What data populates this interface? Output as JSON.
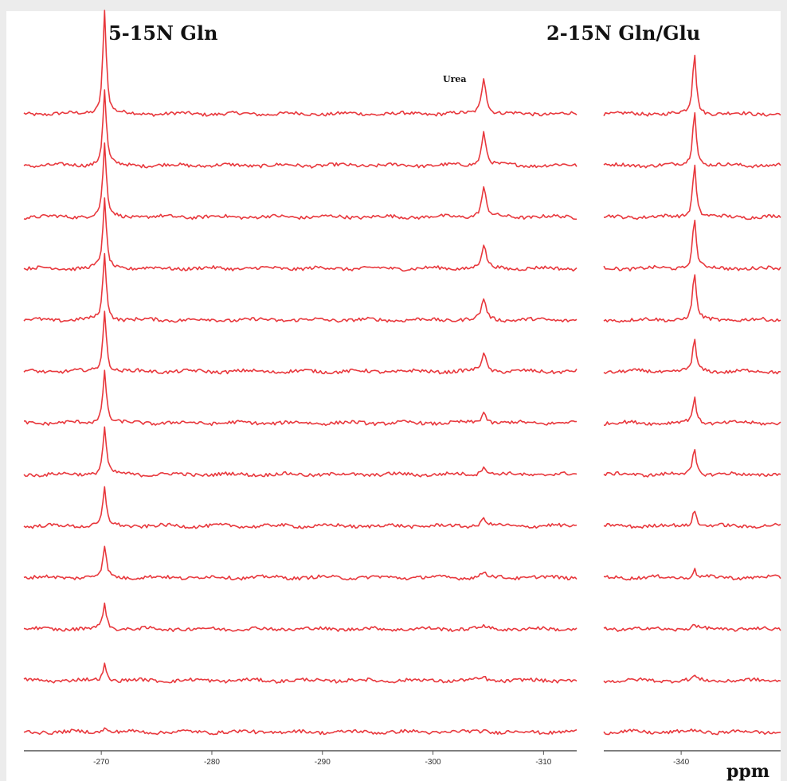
{
  "colors": {
    "trace": "#e8383d",
    "axis": "#555555",
    "background": "#ffffff",
    "frame": "#ececec"
  },
  "chart_data": {
    "type": "line",
    "chart_kind": "stacked NMR spectra",
    "xlabel": "ppm",
    "axis_reversed": true,
    "panels": [
      {
        "title": "5-15N Gln",
        "xlim": [
          -263,
          -313
        ],
        "ticks": [
          {
            "value": -270,
            "label": "-270"
          },
          {
            "value": -280,
            "label": "-280"
          },
          {
            "value": -290,
            "label": "-290"
          },
          {
            "value": -300,
            "label": "-300"
          },
          {
            "value": -310,
            "label": "-310"
          }
        ],
        "peaks": [
          {
            "name": "",
            "ppm": -270.3
          },
          {
            "name": "Urea",
            "ppm": -304.6
          }
        ]
      },
      {
        "title": "2-15N Gln/Glu",
        "xlim": [
          -333,
          -349
        ],
        "ticks": [
          {
            "value": -340,
            "label": "-340"
          }
        ],
        "peaks": [
          {
            "name": "",
            "ppm": -341.2
          }
        ]
      }
    ],
    "series_peak_heights": [
      {
        "trace": 1,
        "gln5": 1.0,
        "urea": 0.36,
        "gln2": 0.6
      },
      {
        "trace": 2,
        "gln5": 0.72,
        "urea": 0.32,
        "gln2": 0.55
      },
      {
        "trace": 3,
        "gln5": 0.7,
        "urea": 0.28,
        "gln2": 0.52
      },
      {
        "trace": 4,
        "gln5": 0.66,
        "urea": 0.22,
        "gln2": 0.5
      },
      {
        "trace": 5,
        "gln5": 0.64,
        "urea": 0.2,
        "gln2": 0.46
      },
      {
        "trace": 6,
        "gln5": 0.58,
        "urea": 0.18,
        "gln2": 0.3
      },
      {
        "trace": 7,
        "gln5": 0.52,
        "urea": 0.11,
        "gln2": 0.24
      },
      {
        "trace": 8,
        "gln5": 0.46,
        "urea": 0.09,
        "gln2": 0.25
      },
      {
        "trace": 9,
        "gln5": 0.36,
        "urea": 0.08,
        "gln2": 0.17
      },
      {
        "trace": 10,
        "gln5": 0.3,
        "urea": 0.05,
        "gln2": 0.08
      },
      {
        "trace": 11,
        "gln5": 0.25,
        "urea": 0.03,
        "gln2": 0.05
      },
      {
        "trace": 12,
        "gln5": 0.16,
        "urea": 0.03,
        "gln2": 0.04
      },
      {
        "trace": 13,
        "gln5": 0.05,
        "urea": 0.02,
        "gln2": 0.02
      }
    ]
  }
}
